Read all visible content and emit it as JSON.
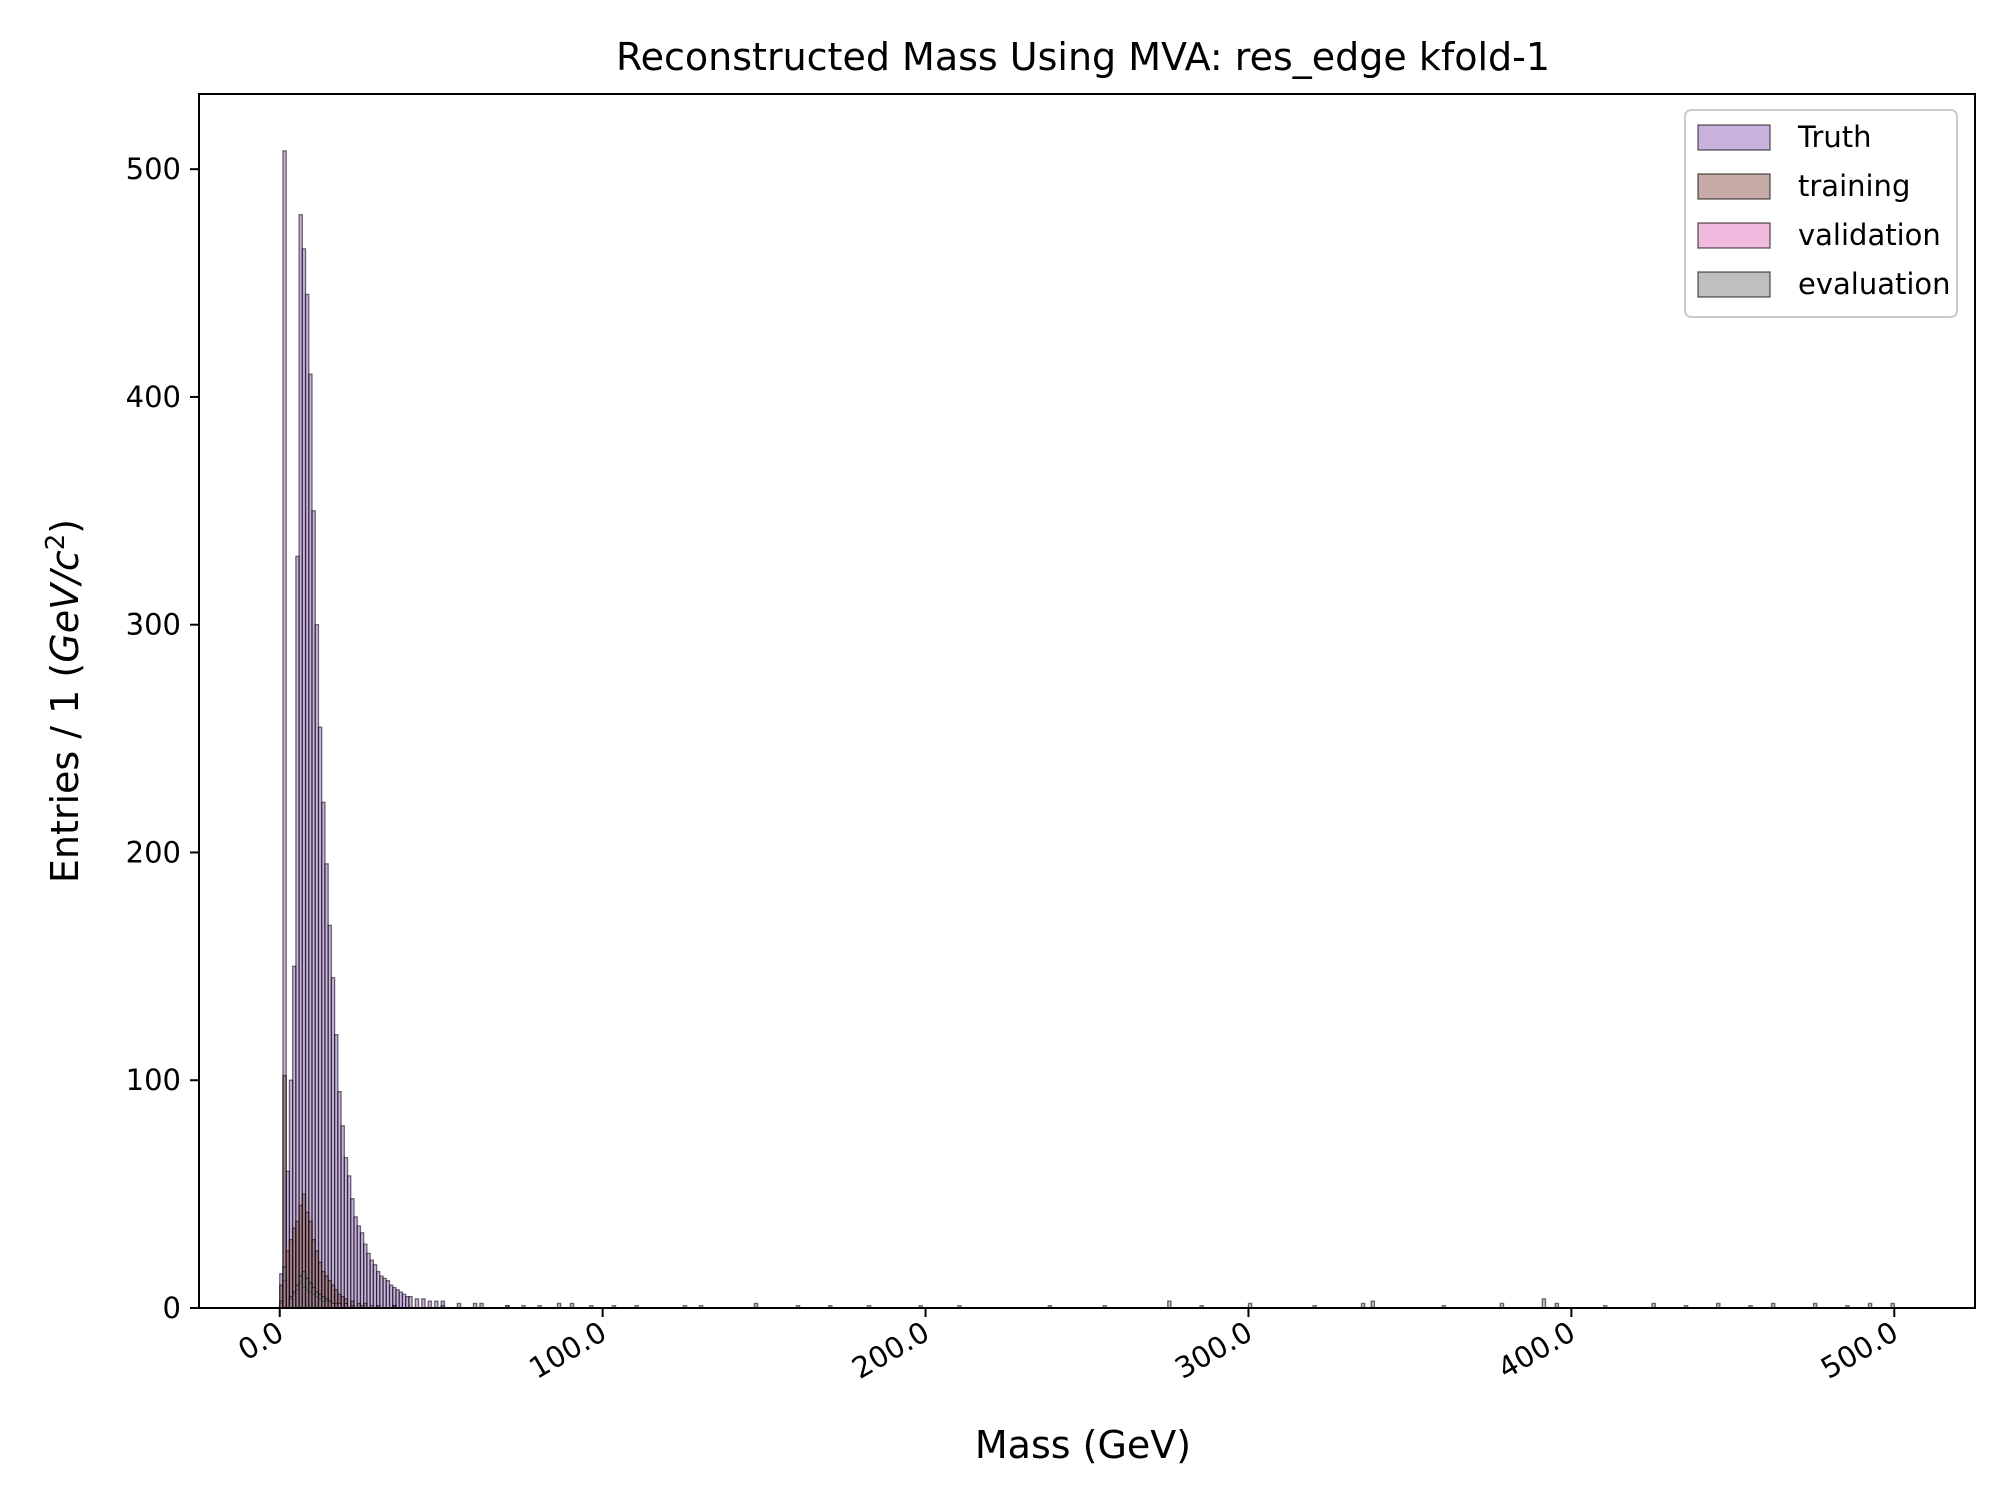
{
  "chart_data": {
    "type": "histogram",
    "title": "Reconstructed Mass Using MVA: res_edge kfold-1",
    "xlabel": "Mass (GeV)",
    "ylabel_prefix": "Entries  / 1 (",
    "ylabel_math": "GeV/c",
    "ylabel_sup": "2",
    "ylabel_suffix": ")",
    "xlim": [
      -25,
      525
    ],
    "ylim": [
      0,
      533
    ],
    "x_ticks": [
      0,
      100,
      200,
      300,
      400,
      500
    ],
    "x_tick_labels": [
      "0.0",
      "100.0",
      "200.0",
      "300.0",
      "400.0",
      "500.0"
    ],
    "y_ticks": [
      0,
      100,
      200,
      300,
      400,
      500
    ],
    "y_tick_labels": [
      "0",
      "100",
      "200",
      "300",
      "400",
      "500"
    ],
    "bin_width": 1,
    "legend_position": "top-right",
    "series": [
      {
        "name": "Truth",
        "fill": "#9467bd",
        "fill_opacity": 0.5,
        "points": [
          [
            0,
            15
          ],
          [
            1,
            508
          ],
          [
            2,
            60
          ],
          [
            3,
            100
          ],
          [
            4,
            150
          ],
          [
            5,
            330
          ],
          [
            6,
            480
          ],
          [
            7,
            465
          ],
          [
            8,
            445
          ],
          [
            9,
            410
          ],
          [
            10,
            350
          ],
          [
            11,
            300
          ],
          [
            12,
            255
          ],
          [
            13,
            222
          ],
          [
            14,
            195
          ],
          [
            15,
            168
          ],
          [
            16,
            145
          ],
          [
            17,
            120
          ],
          [
            18,
            95
          ],
          [
            19,
            80
          ],
          [
            20,
            66
          ],
          [
            21,
            58
          ],
          [
            22,
            48
          ],
          [
            23,
            40
          ],
          [
            24,
            36
          ],
          [
            25,
            33
          ],
          [
            26,
            28
          ],
          [
            27,
            24
          ],
          [
            28,
            21
          ],
          [
            29,
            19
          ],
          [
            30,
            16
          ],
          [
            31,
            14
          ],
          [
            32,
            13
          ],
          [
            33,
            12
          ],
          [
            34,
            10
          ],
          [
            35,
            9
          ],
          [
            36,
            8
          ],
          [
            37,
            7
          ],
          [
            38,
            6
          ],
          [
            39,
            5
          ],
          [
            40,
            5
          ],
          [
            42,
            4
          ],
          [
            44,
            4
          ],
          [
            46,
            3
          ],
          [
            48,
            3
          ],
          [
            50,
            3
          ],
          [
            55,
            2
          ],
          [
            60,
            2
          ],
          [
            70,
            1
          ],
          [
            80,
            1
          ]
        ]
      },
      {
        "name": "training",
        "fill": "#8c564b",
        "fill_opacity": 0.5,
        "points": [
          [
            0,
            10
          ],
          [
            1,
            102
          ],
          [
            2,
            25
          ],
          [
            3,
            30
          ],
          [
            4,
            35
          ],
          [
            5,
            38
          ],
          [
            6,
            45
          ],
          [
            7,
            50
          ],
          [
            8,
            42
          ],
          [
            9,
            38
          ],
          [
            10,
            30
          ],
          [
            11,
            25
          ],
          [
            12,
            20
          ],
          [
            13,
            16
          ],
          [
            14,
            14
          ],
          [
            15,
            12
          ],
          [
            16,
            10
          ],
          [
            17,
            8
          ],
          [
            18,
            6
          ],
          [
            19,
            5
          ],
          [
            20,
            4
          ],
          [
            22,
            3
          ],
          [
            24,
            2
          ],
          [
            26,
            2
          ],
          [
            30,
            1
          ],
          [
            35,
            1
          ]
        ]
      },
      {
        "name": "validation",
        "fill": "#e377c2",
        "fill_opacity": 0.5,
        "points": [
          [
            0,
            2
          ],
          [
            1,
            12
          ],
          [
            3,
            4
          ],
          [
            4,
            6
          ],
          [
            5,
            8
          ],
          [
            6,
            11
          ],
          [
            7,
            9
          ],
          [
            8,
            8
          ],
          [
            9,
            7
          ],
          [
            10,
            6
          ],
          [
            11,
            5
          ],
          [
            12,
            4
          ],
          [
            13,
            3
          ],
          [
            14,
            3
          ],
          [
            16,
            2
          ],
          [
            18,
            2
          ],
          [
            22,
            1
          ],
          [
            28,
            1
          ]
        ]
      },
      {
        "name": "evaluation",
        "fill": "#7f7f7f",
        "fill_opacity": 0.5,
        "points": [
          [
            0,
            3
          ],
          [
            1,
            18
          ],
          [
            3,
            5
          ],
          [
            4,
            7
          ],
          [
            5,
            10
          ],
          [
            6,
            14
          ],
          [
            7,
            16
          ],
          [
            8,
            13
          ],
          [
            9,
            11
          ],
          [
            10,
            9
          ],
          [
            11,
            7
          ],
          [
            12,
            6
          ],
          [
            13,
            5
          ],
          [
            14,
            4
          ],
          [
            15,
            3
          ],
          [
            17,
            2
          ],
          [
            20,
            2
          ],
          [
            25,
            1
          ],
          [
            35,
            1
          ],
          [
            50,
            1
          ],
          [
            62,
            2
          ],
          [
            70,
            1
          ],
          [
            75,
            1
          ],
          [
            86,
            2
          ],
          [
            90,
            2
          ],
          [
            96,
            1
          ],
          [
            103,
            1
          ],
          [
            110,
            1
          ],
          [
            125,
            1
          ],
          [
            130,
            1
          ],
          [
            147,
            2
          ],
          [
            160,
            1
          ],
          [
            170,
            1
          ],
          [
            182,
            1
          ],
          [
            198,
            1
          ],
          [
            210,
            1
          ],
          [
            238,
            1
          ],
          [
            255,
            1
          ],
          [
            275,
            3
          ],
          [
            285,
            1
          ],
          [
            300,
            2
          ],
          [
            320,
            1
          ],
          [
            335,
            2
          ],
          [
            338,
            3
          ],
          [
            360,
            1
          ],
          [
            378,
            2
          ],
          [
            391,
            4
          ],
          [
            395,
            2
          ],
          [
            410,
            1
          ],
          [
            425,
            2
          ],
          [
            435,
            1
          ],
          [
            445,
            2
          ],
          [
            455,
            1
          ],
          [
            462,
            2
          ],
          [
            475,
            2
          ],
          [
            485,
            1
          ],
          [
            492,
            2
          ],
          [
            499,
            2
          ]
        ]
      }
    ]
  }
}
